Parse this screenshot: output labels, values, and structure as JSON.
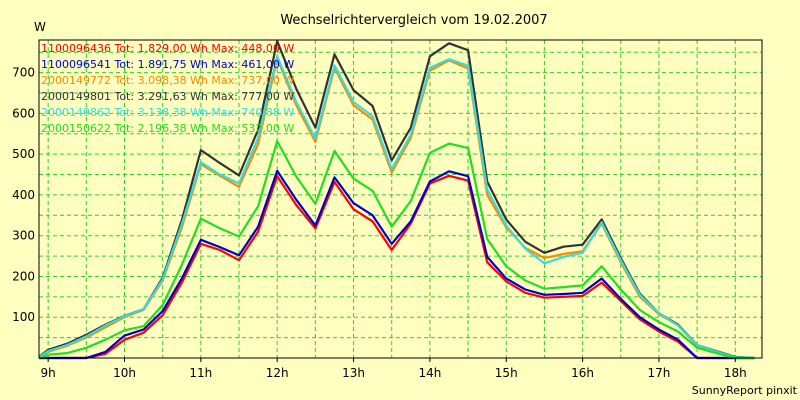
{
  "chart_data": {
    "type": "line",
    "title": "Wechselrichtervergleich vom 19.02.2007",
    "ylabel": "W",
    "xlabel": "",
    "credit": "SunnyReport pinxit",
    "x_ticks": [
      "9h",
      "10h",
      "11h",
      "12h",
      "13h",
      "14h",
      "15h",
      "16h",
      "17h",
      "18h"
    ],
    "y_ticks": [
      100,
      200,
      300,
      400,
      500,
      600,
      700
    ],
    "ylim": [
      0,
      780
    ],
    "xlim": [
      8.88,
      18.35
    ],
    "grid": true,
    "legend_position": "top-left",
    "colors": {
      "background": "#ffffc0",
      "plot_border": "#000000",
      "grid": "#33cc33"
    },
    "x": [
      8.88,
      9.0,
      9.25,
      9.5,
      9.75,
      10.0,
      10.25,
      10.5,
      10.75,
      11.0,
      11.25,
      11.5,
      11.75,
      12.0,
      12.25,
      12.5,
      12.75,
      13.0,
      13.25,
      13.5,
      13.75,
      14.0,
      14.25,
      14.5,
      14.75,
      15.0,
      15.25,
      15.5,
      15.75,
      16.0,
      16.25,
      16.5,
      16.75,
      17.0,
      17.25,
      17.5,
      17.75,
      18.0,
      18.25
    ],
    "series": [
      {
        "name": "1100096436",
        "label": "1100096436 Tot: 1.829,00 Wh Max: 448,00 W",
        "color": "#ff0000",
        "values": [
          0,
          0,
          0,
          0,
          10,
          45,
          62,
          105,
          185,
          280,
          265,
          240,
          310,
          446,
          375,
          318,
          432,
          365,
          335,
          265,
          330,
          428,
          447,
          435,
          235,
          188,
          160,
          148,
          150,
          152,
          185,
          140,
          95,
          65,
          40,
          0,
          0,
          0,
          0
        ]
      },
      {
        "name": "1100096541",
        "label": "1100096541 Tot: 1.891,75 Wh Max: 461,00 W",
        "color": "#0000cc",
        "values": [
          0,
          0,
          0,
          0,
          15,
          55,
          70,
          115,
          195,
          290,
          272,
          252,
          322,
          459,
          388,
          325,
          443,
          380,
          350,
          280,
          335,
          433,
          458,
          446,
          248,
          195,
          168,
          155,
          157,
          160,
          195,
          145,
          100,
          70,
          45,
          0,
          0,
          0,
          0
        ]
      },
      {
        "name": "2000149772",
        "label": "2000149772 Tot: 3.098,38 Wh Max: 737,00 W",
        "color": "#ff8800",
        "values": [
          2,
          15,
          30,
          50,
          75,
          100,
          118,
          190,
          320,
          475,
          447,
          420,
          525,
          735,
          620,
          530,
          712,
          620,
          585,
          455,
          540,
          705,
          730,
          710,
          400,
          320,
          270,
          245,
          255,
          262,
          330,
          235,
          150,
          108,
          80,
          30,
          15,
          2,
          0
        ]
      },
      {
        "name": "2000149801",
        "label": "2000149801 Tot: 3.291,63 Wh Max: 777,00 W",
        "color": "#333333",
        "values": [
          3,
          20,
          35,
          57,
          82,
          103,
          120,
          197,
          338,
          510,
          478,
          448,
          560,
          777,
          660,
          565,
          745,
          657,
          618,
          485,
          565,
          740,
          772,
          755,
          433,
          340,
          285,
          258,
          273,
          278,
          340,
          245,
          158,
          110,
          82,
          32,
          17,
          3,
          0
        ]
      },
      {
        "name": "2000149862",
        "label": "2000149862 Tot: 3.138,38 Wh Max: 740,88 W",
        "color": "#33dddd",
        "values": [
          2,
          17,
          32,
          53,
          80,
          102,
          120,
          193,
          328,
          480,
          450,
          428,
          540,
          740,
          628,
          538,
          718,
          628,
          593,
          463,
          548,
          712,
          733,
          717,
          413,
          325,
          268,
          232,
          248,
          258,
          333,
          240,
          155,
          110,
          80,
          32,
          16,
          2,
          0
        ]
      },
      {
        "name": "2000150622",
        "label": "2000150622 Tot: 2.196,38 Wh Max: 532,00 W",
        "color": "#22dd22",
        "values": [
          0,
          8,
          12,
          25,
          45,
          68,
          78,
          130,
          228,
          342,
          318,
          298,
          372,
          532,
          445,
          378,
          508,
          440,
          410,
          322,
          385,
          503,
          526,
          515,
          292,
          225,
          190,
          170,
          174,
          178,
          225,
          168,
          118,
          88,
          65,
          25,
          12,
          0,
          0
        ]
      }
    ]
  }
}
